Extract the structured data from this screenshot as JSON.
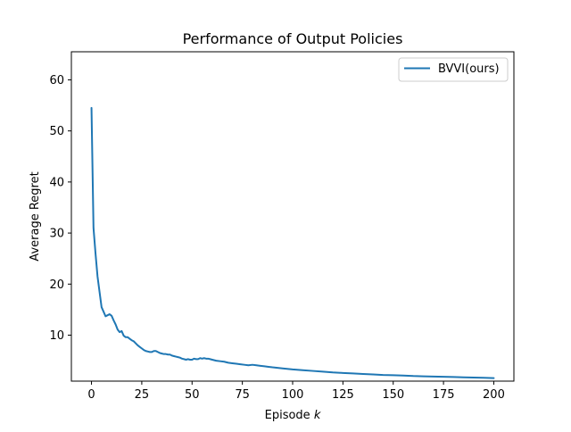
{
  "chart_data": {
    "type": "line",
    "title": "Performance of Output Policies",
    "xlabel": "Episode",
    "xlabel_var": "k",
    "ylabel": "Average Regret",
    "xlim": [
      -10,
      210
    ],
    "ylim": [
      1,
      65.5
    ],
    "xticks": [
      0,
      25,
      50,
      75,
      100,
      125,
      150,
      175,
      200
    ],
    "yticks": [
      10,
      20,
      30,
      40,
      50,
      60
    ],
    "grid": false,
    "legend_position": "top-right",
    "colors": {
      "series": "#1f77b4",
      "legend_border": "#cccccc"
    },
    "series": [
      {
        "name": "BVVI(ours)",
        "x": [
          0,
          1,
          2,
          3,
          4,
          5,
          6,
          7,
          8,
          9,
          10,
          11,
          12,
          13,
          14,
          15,
          16,
          17,
          18,
          19,
          20,
          21,
          22,
          23,
          24,
          25,
          26,
          27,
          28,
          29,
          30,
          31,
          32,
          33,
          34,
          35,
          36,
          37,
          38,
          39,
          40,
          41,
          42,
          43,
          44,
          45,
          46,
          47,
          48,
          49,
          50,
          51,
          52,
          53,
          54,
          55,
          56,
          57,
          58,
          59,
          60,
          62,
          64,
          66,
          68,
          70,
          72,
          74,
          76,
          78,
          80,
          82,
          84,
          86,
          88,
          90,
          95,
          100,
          105,
          110,
          115,
          120,
          125,
          130,
          135,
          140,
          145,
          150,
          155,
          160,
          165,
          170,
          175,
          180,
          185,
          190,
          195,
          200
        ],
        "y": [
          54.5,
          31,
          26,
          21.5,
          18.5,
          15.5,
          14.6,
          13.7,
          13.9,
          14.1,
          13.8,
          12.9,
          12.1,
          11.1,
          10.6,
          10.8,
          9.9,
          9.6,
          9.6,
          9.3,
          9.0,
          8.8,
          8.4,
          8.0,
          7.7,
          7.4,
          7.1,
          6.9,
          6.8,
          6.7,
          6.7,
          6.9,
          6.9,
          6.7,
          6.5,
          6.4,
          6.3,
          6.3,
          6.2,
          6.2,
          6.0,
          5.9,
          5.8,
          5.7,
          5.6,
          5.4,
          5.3,
          5.2,
          5.3,
          5.2,
          5.2,
          5.4,
          5.3,
          5.3,
          5.5,
          5.4,
          5.5,
          5.4,
          5.4,
          5.3,
          5.2,
          5.0,
          4.9,
          4.8,
          4.6,
          4.5,
          4.4,
          4.3,
          4.2,
          4.1,
          4.2,
          4.1,
          4.0,
          3.9,
          3.8,
          3.7,
          3.5,
          3.3,
          3.15,
          3.0,
          2.85,
          2.7,
          2.6,
          2.5,
          2.4,
          2.3,
          2.2,
          2.15,
          2.1,
          2.0,
          1.95,
          1.9,
          1.85,
          1.8,
          1.75,
          1.7,
          1.65,
          1.6
        ]
      }
    ]
  }
}
